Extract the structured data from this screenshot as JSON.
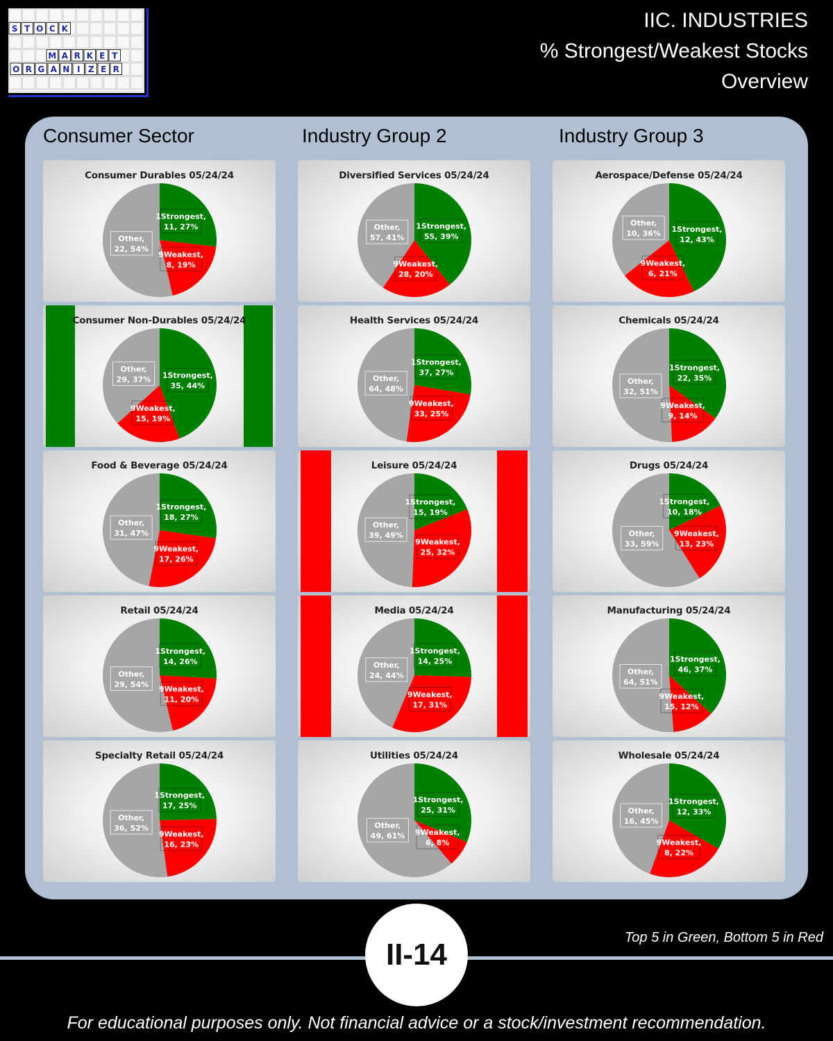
{
  "logo": {
    "words": [
      "STOCK",
      "MARKET",
      "ORGANIZER"
    ],
    "colors": {
      "box_border": "#2233cc",
      "grid_bg": "#eeeeee",
      "letter_color": "#1a2a9a"
    }
  },
  "header": {
    "title_lines": [
      "IIC. INDUSTRIES",
      "% Strongest/Weakest Stocks",
      "Overview"
    ]
  },
  "columns": [
    "Consumer Sector",
    "Industry Group 2",
    "Industry Group 3"
  ],
  "colors": {
    "strongest": "#008000",
    "weakest": "#ff0000",
    "other": "#a6a6a6",
    "panel_bg": "#b0c0d2"
  },
  "chart_data": [
    {
      "type": "pie",
      "title": "Consumer Durables 05/24/24",
      "highlight": "none",
      "labels": [
        "1Strongest",
        "9Weakest",
        "Other"
      ],
      "values": [
        11,
        8,
        22
      ],
      "percents": [
        27,
        19,
        54
      ]
    },
    {
      "type": "pie",
      "title": "Consumer Non-Durables 05/24/24",
      "highlight": "green",
      "labels": [
        "1Strongest",
        "9Weakest",
        "Other"
      ],
      "values": [
        35,
        15,
        29
      ],
      "percents": [
        44,
        19,
        37
      ]
    },
    {
      "type": "pie",
      "title": "Food & Beverage 05/24/24",
      "highlight": "none",
      "labels": [
        "1Strongest",
        "9Weakest",
        "Other"
      ],
      "values": [
        18,
        17,
        31
      ],
      "percents": [
        27,
        26,
        47
      ]
    },
    {
      "type": "pie",
      "title": "Retail 05/24/24",
      "highlight": "none",
      "labels": [
        "1Strongest",
        "9Weakest",
        "Other"
      ],
      "values": [
        14,
        11,
        29
      ],
      "percents": [
        26,
        20,
        54
      ]
    },
    {
      "type": "pie",
      "title": "Specialty Retail 05/24/24",
      "highlight": "none",
      "labels": [
        "1Strongest",
        "9Weakest",
        "Other"
      ],
      "values": [
        17,
        16,
        36
      ],
      "percents": [
        25,
        23,
        52
      ]
    },
    {
      "type": "pie",
      "title": "Diversified Services 05/24/24",
      "highlight": "none",
      "labels": [
        "1Strongest",
        "9Weakest",
        "Other"
      ],
      "values": [
        55,
        28,
        57
      ],
      "percents": [
        39,
        20,
        41
      ]
    },
    {
      "type": "pie",
      "title": "Health Services 05/24/24",
      "highlight": "none",
      "labels": [
        "1Strongest",
        "9Weakest",
        "Other"
      ],
      "values": [
        37,
        33,
        64
      ],
      "percents": [
        27,
        25,
        48
      ]
    },
    {
      "type": "pie",
      "title": "Leisure 05/24/24",
      "highlight": "red",
      "labels": [
        "1Strongest",
        "9Weakest",
        "Other"
      ],
      "values": [
        15,
        25,
        39
      ],
      "percents": [
        19,
        32,
        49
      ]
    },
    {
      "type": "pie",
      "title": "Media 05/24/24",
      "highlight": "red",
      "labels": [
        "1Strongest",
        "9Weakest",
        "Other"
      ],
      "values": [
        14,
        17,
        24
      ],
      "percents": [
        25,
        31,
        44
      ]
    },
    {
      "type": "pie",
      "title": "Utilities 05/24/24",
      "highlight": "none",
      "labels": [
        "1Strongest",
        "9Weakest",
        "Other"
      ],
      "values": [
        25,
        6,
        49
      ],
      "percents": [
        31,
        8,
        61
      ]
    },
    {
      "type": "pie",
      "title": "Aerospace/Defense 05/24/24",
      "highlight": "none",
      "labels": [
        "1Strongest",
        "9Weakest",
        "Other"
      ],
      "values": [
        12,
        6,
        10
      ],
      "percents": [
        43,
        21,
        36
      ]
    },
    {
      "type": "pie",
      "title": "Chemicals 05/24/24",
      "highlight": "none",
      "labels": [
        "1Strongest",
        "9Weakest",
        "Other"
      ],
      "values": [
        22,
        9,
        32
      ],
      "percents": [
        35,
        14,
        51
      ]
    },
    {
      "type": "pie",
      "title": "Drugs 05/24/24",
      "highlight": "none",
      "labels": [
        "1Strongest",
        "9Weakest",
        "Other"
      ],
      "values": [
        10,
        13,
        33
      ],
      "percents": [
        18,
        23,
        59
      ]
    },
    {
      "type": "pie",
      "title": "Manufacturing 05/24/24",
      "highlight": "none",
      "labels": [
        "1Strongest",
        "9Weakest",
        "Other"
      ],
      "values": [
        46,
        15,
        64
      ],
      "percents": [
        37,
        12,
        51
      ]
    },
    {
      "type": "pie",
      "title": "Wholesale 05/24/24",
      "highlight": "none",
      "labels": [
        "1Strongest",
        "9Weakest",
        "Other"
      ],
      "values": [
        12,
        8,
        16
      ],
      "percents": [
        33,
        22,
        45
      ]
    }
  ],
  "footer": {
    "page_number": "II-14",
    "legend_note": "Top 5 in Green, Bottom 5 in Red",
    "disclaimer": "For educational purposes only. Not financial advice or a stock/investment recommendation."
  }
}
